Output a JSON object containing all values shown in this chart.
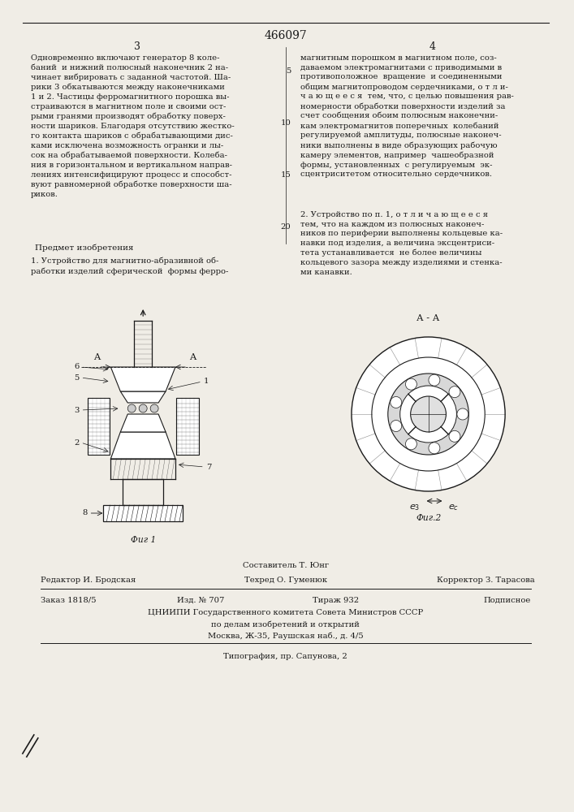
{
  "patent_number": "466097",
  "page_left": "3",
  "page_right": "4",
  "bg_color": "#f0ede6",
  "text_color": "#1a1a1a",
  "body_fontsize": 7.2,
  "left_column_text": "Одновременно включают генератор 8 коле-\nбаний  и нижний полюсный наконечник 2 на-\nчинает вибрировать с заданной частотой. Ша-\nрики 3 обкатываются между наконечниками\n1 и 2. Частицы ферромагнитного порошка вы-\nстраиваются в магнитном поле и своими ост-\nрыми гранями производят обработку поверх-\nности шариков. Благодаря отсутствию жестко-\nго контакта шариков с обрабатывающими дис-\nками исключена возможность огранки и лы-\nсок на обрабатываемой поверхности. Колеба-\nния в горизонтальном и вертикальном направ-\nлениях интенсифицируют процесс и способст-\nвуют равномерной обработке поверхности ша-\nриков.",
  "right_column_text": "магнитным порошком в магнитном поле, соз-\nдаваемом электромагнитами с приводимыми в\nпротивоположное  вращение  и соединенными\nобщим магнитопроводом сердечниками, о т л и-\nч а ю щ е е с я  тем, что, с целью повышения рав-\nномерности обработки поверхности изделий за\nсчет сообщения обоим полюсным наконечни-\nкам электромагнитов поперечных  колебаний\nрегулируемой амплитуды, полюсные наконеч-\nники выполнены в виде образующих рабочую\nкамеру элементов, например  чашеобразной\nформы, установленных  с регулируемым  эк-\nсцентриситетом относительно сердечников.",
  "line_numbers_right": [
    "5",
    "10",
    "15",
    "20"
  ],
  "section_title": "Предмет изобретения",
  "claim_text": "1. Устройство для магнитно-абразивной об-\nработки изделий сферической  формы ферро-",
  "claim2_text": "2. Устройство по п. 1, о т л и ч а ю щ е е с я\nтем, что на каждом из полюсных наконеч-\nников по периферии выполнены кольцевые ка-\nнавки под изделия, а величина эксцентриси-\nтета устанавливается  не более величины\nкольцевого зазора между изделиями и стенка-\nми канавки.",
  "fig1_label": "Фиг 1",
  "fig2_label": "Фиг.2",
  "fig2_section_label": "А - А",
  "ecc_label1": "e3",
  "ecc_label2": "ec",
  "composer": "Составитель Т. Юнг",
  "editor": "Редактор И. Бродская",
  "techred": "Техред О. Гуменюк",
  "corrector": "Корректор З. Тарасова",
  "order": "Заказ 1818/5",
  "edition": "Изд. № 707",
  "circulation": "Тираж 932",
  "subscription": "Подписное",
  "institute1": "ЦНИИПИ Государственного комитета Совета Министров СССР",
  "institute2": "по делам изобретений и открытий",
  "address": "Москва, Ж-35, Раушская наб., д. 4/5",
  "printer": "Типография, пр. Сапунова, 2"
}
